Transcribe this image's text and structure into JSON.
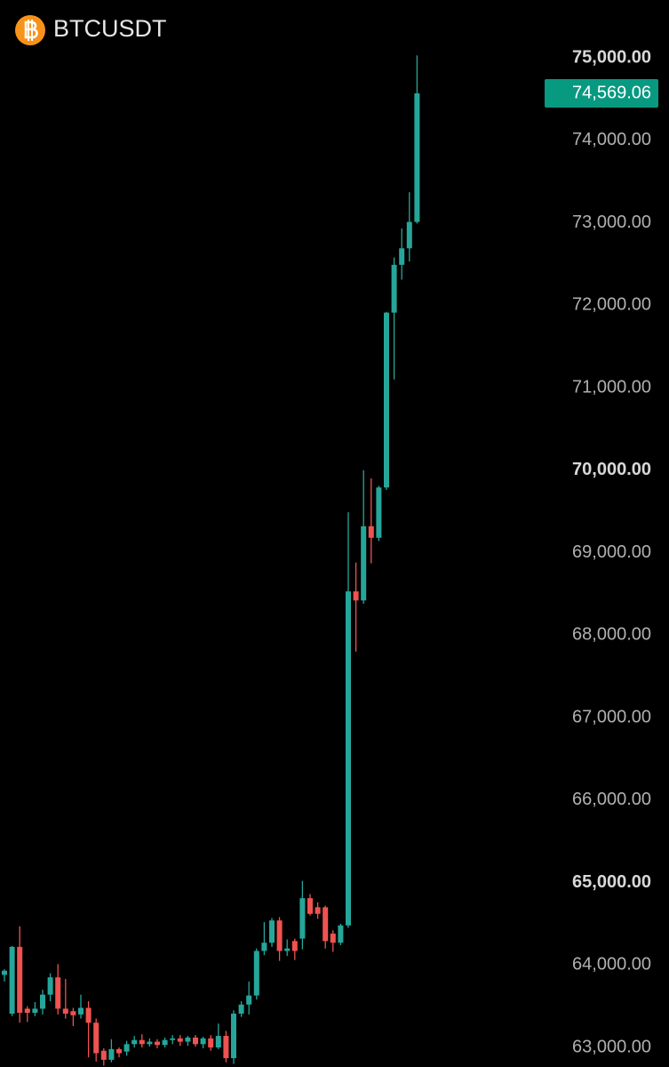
{
  "chart_data": {
    "type": "candlestick",
    "title": "BTCUSDT",
    "up_color": "#26a69a",
    "down_color": "#ef5350",
    "ylim": [
      62763,
      75701
    ],
    "yticks": [
      {
        "value": 75000,
        "label": "75,000.00"
      },
      {
        "value": 74000,
        "label": "74,000.00"
      },
      {
        "value": 73000,
        "label": "73,000.00"
      },
      {
        "value": 72000,
        "label": "72,000.00"
      },
      {
        "value": 71000,
        "label": "71,000.00"
      },
      {
        "value": 70000,
        "label": "70,000.00"
      },
      {
        "value": 69000,
        "label": "69,000.00"
      },
      {
        "value": 68000,
        "label": "68,000.00"
      },
      {
        "value": 67000,
        "label": "67,000.00"
      },
      {
        "value": 66000,
        "label": "66,000.00"
      },
      {
        "value": 65000,
        "label": "65,000.00"
      },
      {
        "value": 64000,
        "label": "64,000.00"
      },
      {
        "value": 63000,
        "label": "63,000.00"
      }
    ],
    "last_price": {
      "value": 74569.06,
      "label": "74,569.06"
    },
    "open": [
      63880,
      63410,
      64220,
      63470,
      63420,
      63470,
      63640,
      63850,
      63470,
      63440,
      63400,
      63480,
      63300,
      62960,
      62850,
      62980,
      62950,
      63040,
      63090,
      63040,
      63070,
      63030,
      63090,
      63110,
      63070,
      63120,
      63040,
      63110,
      63000,
      63140,
      62870,
      63410,
      63520,
      63630,
      64170,
      64270,
      64540,
      64170,
      64290,
      64320,
      64810,
      64700,
      64700,
      64380,
      64270,
      64480,
      68530,
      68420,
      69320,
      69180,
      69790,
      71910,
      72490,
      72690,
      73010
    ],
    "high": [
      63950,
      64230,
      64470,
      63500,
      63550,
      63700,
      63900,
      64010,
      63830,
      63480,
      63640,
      63560,
      63350,
      62990,
      63100,
      63000,
      63080,
      63140,
      63160,
      63110,
      63100,
      63120,
      63150,
      63150,
      63140,
      63150,
      63130,
      63150,
      63290,
      63200,
      63450,
      63560,
      63800,
      64200,
      64520,
      64570,
      64580,
      64310,
      64320,
      65020,
      64860,
      64760,
      64720,
      64420,
      64500,
      69490,
      68880,
      70000,
      69900,
      69810,
      71920,
      72580,
      72930,
      73370,
      75030
    ],
    "low": [
      63800,
      63380,
      63300,
      63310,
      63380,
      63400,
      63560,
      63400,
      63350,
      63260,
      63350,
      62880,
      62830,
      62780,
      62820,
      62880,
      62900,
      63000,
      63000,
      63010,
      62990,
      63000,
      63040,
      63020,
      63020,
      63010,
      62990,
      62960,
      62980,
      62820,
      62800,
      63370,
      63400,
      63580,
      64120,
      64220,
      64050,
      64110,
      64060,
      64190,
      64600,
      64560,
      64200,
      64160,
      64240,
      64450,
      67800,
      68380,
      68870,
      69140,
      69760,
      71100,
      72310,
      72530,
      72990
    ],
    "close": [
      63930,
      64220,
      63420,
      63420,
      63470,
      63640,
      63850,
      63470,
      63410,
      63390,
      63480,
      63300,
      62930,
      62850,
      62980,
      62930,
      63040,
      63090,
      63040,
      63070,
      63030,
      63090,
      63110,
      63070,
      63120,
      63040,
      63110,
      63000,
      63140,
      62870,
      63410,
      63520,
      63630,
      64170,
      64270,
      64540,
      64170,
      64200,
      64170,
      64810,
      64620,
      64620,
      64290,
      64270,
      64480,
      68530,
      68420,
      69320,
      69180,
      69790,
      71910,
      72490,
      72690,
      73010,
      74569.06
    ]
  }
}
